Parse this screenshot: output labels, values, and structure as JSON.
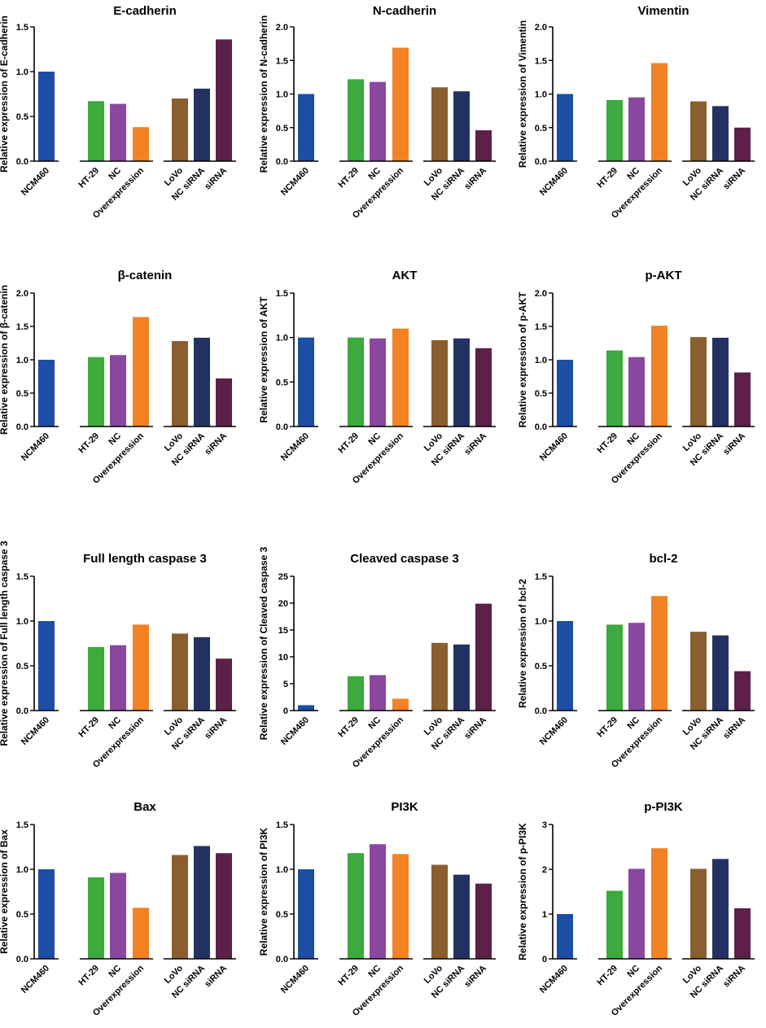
{
  "chart_data": [
    {
      "type": "bar",
      "title": "E-cadherin",
      "ylabel": "Relative expression of E-cadherin",
      "ylim": [
        0,
        1.5
      ],
      "yticks": [
        0,
        0.5,
        1.0,
        1.5
      ],
      "ytick_labels": [
        "0.0",
        "0.5",
        "1.0",
        "1.5"
      ],
      "categories": [
        "NCM460",
        "HT-29",
        "NC",
        "Overexpression",
        "LoVo",
        "NC siRNA",
        "siRNA"
      ],
      "values": [
        1.0,
        0.67,
        0.64,
        0.38,
        0.7,
        0.81,
        1.36
      ]
    },
    {
      "type": "bar",
      "title": "N-cadherin",
      "ylabel": "Relative expression of N-cadherin",
      "ylim": [
        0,
        2.0
      ],
      "yticks": [
        0,
        0.5,
        1.0,
        1.5,
        2.0
      ],
      "ytick_labels": [
        "0.0",
        "0.5",
        "1.0",
        "1.5",
        "2.0"
      ],
      "categories": [
        "NCM460",
        "HT-29",
        "NC",
        "Overexpression",
        "LoVo",
        "NC siRNA",
        "siRNA"
      ],
      "values": [
        1.0,
        1.22,
        1.18,
        1.69,
        1.1,
        1.04,
        0.46
      ]
    },
    {
      "type": "bar",
      "title": "Vimentin",
      "ylabel": "Relative expression of Vimentin",
      "ylim": [
        0,
        2.0
      ],
      "yticks": [
        0,
        0.5,
        1.0,
        1.5,
        2.0
      ],
      "ytick_labels": [
        "0.0",
        "0.5",
        "1.0",
        "1.5",
        "2.0"
      ],
      "categories": [
        "NCM460",
        "HT-29",
        "NC",
        "Overexpression",
        "LoVo",
        "NC siRNA",
        "siRNA"
      ],
      "values": [
        1.0,
        0.91,
        0.95,
        1.46,
        0.89,
        0.82,
        0.5
      ]
    },
    {
      "type": "bar",
      "title": "β-catenin",
      "ylabel": "Relative expression of β-catenin",
      "ylim": [
        0,
        2.0
      ],
      "yticks": [
        0,
        0.5,
        1.0,
        1.5,
        2.0
      ],
      "ytick_labels": [
        "0.0",
        "0.5",
        "1.0",
        "1.5",
        "2.0"
      ],
      "categories": [
        "NCM460",
        "HT-29",
        "NC",
        "Overexpression",
        "LoVo",
        "NC siRNA",
        "siRNA"
      ],
      "values": [
        1.0,
        1.04,
        1.07,
        1.64,
        1.28,
        1.33,
        0.72
      ]
    },
    {
      "type": "bar",
      "title": "AKT",
      "ylabel": "Relative expression of AKT",
      "ylim": [
        0,
        1.5
      ],
      "yticks": [
        0,
        0.5,
        1.0,
        1.5
      ],
      "ytick_labels": [
        "0.0",
        "0.5",
        "1.0",
        "1.5"
      ],
      "categories": [
        "NCM460",
        "HT-29",
        "NC",
        "Overexpression",
        "LoVo",
        "NC siRNA",
        "siRNA"
      ],
      "values": [
        1.0,
        1.0,
        0.99,
        1.1,
        0.97,
        0.99,
        0.88
      ]
    },
    {
      "type": "bar",
      "title": "p-AKT",
      "ylabel": "Relative expression of p-AKT",
      "ylim": [
        0,
        2.0
      ],
      "yticks": [
        0,
        0.5,
        1.0,
        1.5,
        2.0
      ],
      "ytick_labels": [
        "0.0",
        "0.5",
        "1.0",
        "1.5",
        "2.0"
      ],
      "categories": [
        "NCM460",
        "HT-29",
        "NC",
        "Overexpression",
        "LoVo",
        "NC siRNA",
        "siRNA"
      ],
      "values": [
        1.0,
        1.14,
        1.04,
        1.51,
        1.34,
        1.33,
        0.81
      ]
    },
    {
      "type": "bar",
      "title": "Full length caspase 3",
      "ylabel": "Relative expression of Full length caspase 3",
      "ylim": [
        0,
        1.5
      ],
      "yticks": [
        0,
        0.5,
        1.0,
        1.5
      ],
      "ytick_labels": [
        "0.0",
        "0.5",
        "1.0",
        "1.5"
      ],
      "categories": [
        "NCM460",
        "HT-29",
        "NC",
        "Overexpression",
        "LoVo",
        "NC siRNA",
        "siRNA"
      ],
      "values": [
        1.0,
        0.71,
        0.73,
        0.96,
        0.86,
        0.82,
        0.58
      ]
    },
    {
      "type": "bar",
      "title": "Cleaved caspase 3",
      "ylabel": "Relative expression of Cleaved caspase 3",
      "ylim": [
        0,
        25
      ],
      "yticks": [
        0,
        5,
        10,
        15,
        20,
        25
      ],
      "ytick_labels": [
        "0",
        "5",
        "10",
        "15",
        "20",
        "25"
      ],
      "categories": [
        "NCM460",
        "HT-29",
        "NC",
        "Overexpression",
        "LoVo",
        "NC siRNA",
        "siRNA"
      ],
      "values": [
        1.0,
        6.4,
        6.6,
        2.2,
        12.6,
        12.3,
        19.9
      ]
    },
    {
      "type": "bar",
      "title": "bcl-2",
      "ylabel": "Relative expression of bcl-2",
      "ylim": [
        0,
        1.5
      ],
      "yticks": [
        0,
        0.5,
        1.0,
        1.5
      ],
      "ytick_labels": [
        "0.0",
        "0.5",
        "1.0",
        "1.5"
      ],
      "categories": [
        "NCM460",
        "HT-29",
        "NC",
        "Overexpression",
        "LoVo",
        "NC siRNA",
        "siRNA"
      ],
      "values": [
        1.0,
        0.96,
        0.98,
        1.28,
        0.88,
        0.84,
        0.44
      ]
    },
    {
      "type": "bar",
      "title": "Bax",
      "ylabel": "Relative expression of Bax",
      "ylim": [
        0,
        1.5
      ],
      "yticks": [
        0,
        0.5,
        1.0,
        1.5
      ],
      "ytick_labels": [
        "0.0",
        "0.5",
        "1.0",
        "1.5"
      ],
      "categories": [
        "NCM460",
        "HT-29",
        "NC",
        "Overexpression",
        "LoVo",
        "NC siRNA",
        "siRNA"
      ],
      "values": [
        1.0,
        0.91,
        0.96,
        0.57,
        1.16,
        1.26,
        1.18
      ]
    },
    {
      "type": "bar",
      "title": "PI3K",
      "ylabel": "Relative expression of PI3K",
      "ylim": [
        0,
        1.5
      ],
      "yticks": [
        0,
        0.5,
        1.0,
        1.5
      ],
      "ytick_labels": [
        "0.0",
        "0.5",
        "1.0",
        "1.5"
      ],
      "categories": [
        "NCM460",
        "HT-29",
        "NC",
        "Overexpression",
        "LoVo",
        "NC siRNA",
        "siRNA"
      ],
      "values": [
        1.0,
        1.18,
        1.28,
        1.17,
        1.05,
        0.94,
        0.84
      ]
    },
    {
      "type": "bar",
      "title": "p-PI3K",
      "ylabel": "Relative expression of p-PI3K",
      "ylim": [
        0,
        3
      ],
      "yticks": [
        0,
        1,
        2,
        3
      ],
      "ytick_labels": [
        "0",
        "1",
        "2",
        "3"
      ],
      "categories": [
        "NCM460",
        "HT-29",
        "NC",
        "Overexpression",
        "LoVo",
        "NC siRNA",
        "siRNA"
      ],
      "values": [
        1.0,
        1.52,
        2.01,
        2.47,
        2.01,
        2.23,
        1.13
      ]
    }
  ],
  "colors": {
    "bars": [
      "#1c4ea3",
      "#3aab3c",
      "#8a47a0",
      "#f28223",
      "#8a5e2d",
      "#233262",
      "#5c2049"
    ],
    "axis": "#000000"
  }
}
